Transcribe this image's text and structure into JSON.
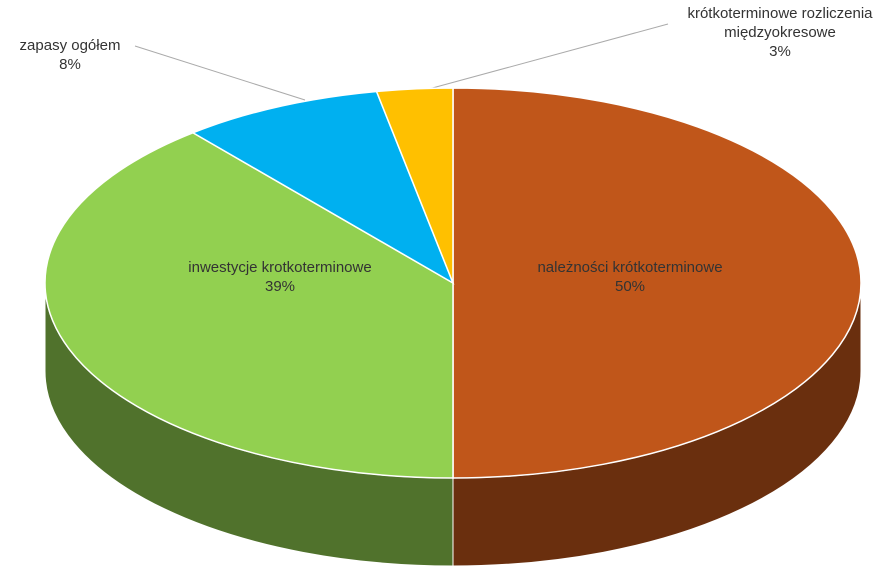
{
  "chart_data": {
    "type": "pie3d",
    "categories": [
      "należności krótkoterminowe",
      "inwestycje krotkoterminowe",
      "zapasy ogółem",
      "krótkoterminowe rozliczenia międzyokresowe"
    ],
    "values": [
      50,
      39,
      8,
      3
    ],
    "value_labels": [
      "50%",
      "39%",
      "8%",
      "3%"
    ],
    "colors": [
      "#c0561a",
      "#92d050",
      "#00b0f0",
      "#ffc000"
    ]
  }
}
